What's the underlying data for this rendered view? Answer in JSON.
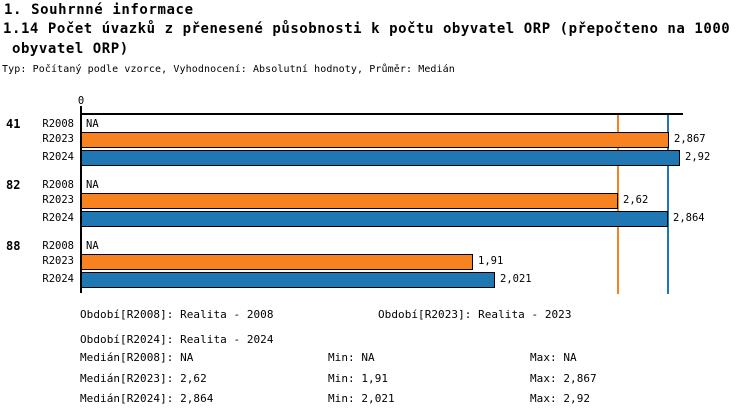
{
  "header": {
    "section_title": "1. Souhrnné informace",
    "chart_title_line1": "1.14 Počet úvazků z přenesené působnosti k počtu obyvatel ORP (přepočteno na 1000",
    "chart_title_line2": " obyvatel ORP)",
    "subtitle": "Typ: Počítaný podle vzorce, Vyhodnocení: Absolutní hodnoty, Průměr: Medián"
  },
  "chart_data": {
    "type": "bar",
    "orientation": "horizontal",
    "title": "1.14 Počet úvazků z přenesené působnosti k počtu obyvatel ORP (přepočteno na 1000 obyvatel ORP)",
    "xlabel": "",
    "ylabel": "",
    "axis": {
      "origin_label": "0",
      "xlim": [
        0,
        2.94
      ],
      "grid": false
    },
    "series_colors": {
      "R2023": "#F8821F",
      "R2024": "#1F77B4"
    },
    "groups": [
      {
        "label": "41",
        "bars": [
          {
            "series": "R2008",
            "value": null,
            "display": "NA"
          },
          {
            "series": "R2023",
            "value": 2.867,
            "display": "2,867"
          },
          {
            "series": "R2024",
            "value": 2.92,
            "display": "2,92"
          }
        ]
      },
      {
        "label": "82",
        "bars": [
          {
            "series": "R2008",
            "value": null,
            "display": "NA"
          },
          {
            "series": "R2023",
            "value": 2.62,
            "display": "2,62"
          },
          {
            "series": "R2024",
            "value": 2.864,
            "display": "2,864"
          }
        ]
      },
      {
        "label": "88",
        "bars": [
          {
            "series": "R2008",
            "value": null,
            "display": "NA"
          },
          {
            "series": "R2023",
            "value": 1.91,
            "display": "1,91"
          },
          {
            "series": "R2024",
            "value": 2.021,
            "display": "2,021"
          }
        ]
      }
    ],
    "reference_lines": [
      {
        "series": "R2023",
        "name": "median-R2023",
        "value": 2.62,
        "color": "#F8821F"
      },
      {
        "series": "R2024",
        "name": "median-R2024",
        "value": 2.864,
        "color": "#1F77B4"
      }
    ]
  },
  "legend": {
    "periods": [
      {
        "text": "Období[R2008]: Realita - 2008"
      },
      {
        "text": "Období[R2023]: Realita - 2023"
      },
      {
        "text": "Období[R2024]: Realita - 2024"
      }
    ],
    "stats": [
      {
        "median": "Medián[R2008]: NA",
        "min": "Min: NA",
        "max": "Max: NA"
      },
      {
        "median": "Medián[R2023]: 2,62",
        "min": "Min: 1,91",
        "max": "Max: 2,867"
      },
      {
        "median": "Medián[R2024]: 2,864",
        "min": "Min: 2,021",
        "max": "Max: 2,92"
      }
    ]
  }
}
